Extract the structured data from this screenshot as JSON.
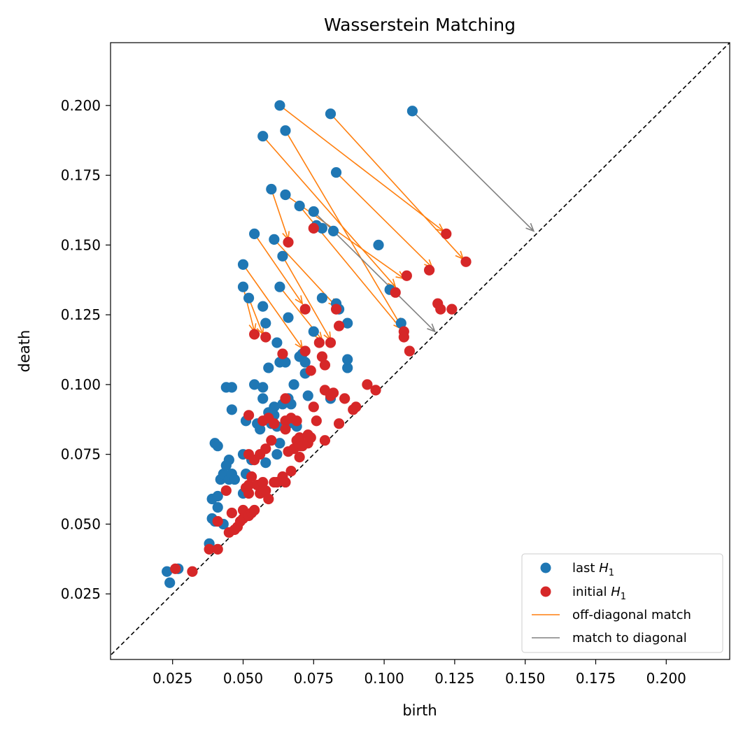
{
  "chart_data": {
    "type": "scatter",
    "title": "Wasserstein Matching",
    "xlabel": "birth",
    "ylabel": "death",
    "xlim": [
      0.003,
      0.2225
    ],
    "ylim": [
      0.0015,
      0.2225
    ],
    "xticks": [
      "0.025",
      "0.050",
      "0.075",
      "0.100",
      "0.125",
      "0.150",
      "0.175",
      "0.200"
    ],
    "yticks": [
      "0.025",
      "0.050",
      "0.075",
      "0.100",
      "0.125",
      "0.150",
      "0.175",
      "0.200"
    ],
    "grid": false,
    "diagonal": "y = x (dashed)",
    "legend_position": "bottom-right",
    "legend": {
      "last": {
        "label": "last ",
        "math": "H",
        "sub": "1"
      },
      "initial": {
        "label": "initial ",
        "math": "H",
        "sub": "1"
      },
      "offdiag": {
        "label": "off-diagonal match"
      },
      "diag": {
        "label": "match to diagonal"
      }
    },
    "colors": {
      "last": "#1f77b4",
      "initial": "#d62728",
      "offdiag": "#ff7f0e",
      "diag": "#808080"
    },
    "series": [
      {
        "key": "last",
        "points": [
          [
            0.023,
            0.033
          ],
          [
            0.024,
            0.029
          ],
          [
            0.027,
            0.034
          ],
          [
            0.038,
            0.043
          ],
          [
            0.039,
            0.052
          ],
          [
            0.039,
            0.059
          ],
          [
            0.04,
            0.079
          ],
          [
            0.04,
            0.051
          ],
          [
            0.041,
            0.056
          ],
          [
            0.041,
            0.078
          ],
          [
            0.041,
            0.06
          ],
          [
            0.042,
            0.066
          ],
          [
            0.043,
            0.05
          ],
          [
            0.043,
            0.068
          ],
          [
            0.044,
            0.071
          ],
          [
            0.044,
            0.099
          ],
          [
            0.045,
            0.073
          ],
          [
            0.045,
            0.066
          ],
          [
            0.046,
            0.099
          ],
          [
            0.046,
            0.068
          ],
          [
            0.046,
            0.091
          ],
          [
            0.047,
            0.066
          ],
          [
            0.05,
            0.135
          ],
          [
            0.05,
            0.143
          ],
          [
            0.05,
            0.075
          ],
          [
            0.05,
            0.061
          ],
          [
            0.051,
            0.087
          ],
          [
            0.051,
            0.068
          ],
          [
            0.052,
            0.131
          ],
          [
            0.053,
            0.073
          ],
          [
            0.054,
            0.154
          ],
          [
            0.054,
            0.1
          ],
          [
            0.055,
            0.086
          ],
          [
            0.056,
            0.084
          ],
          [
            0.057,
            0.189
          ],
          [
            0.057,
            0.128
          ],
          [
            0.057,
            0.099
          ],
          [
            0.057,
            0.095
          ],
          [
            0.058,
            0.122
          ],
          [
            0.058,
            0.072
          ],
          [
            0.059,
            0.106
          ],
          [
            0.059,
            0.09
          ],
          [
            0.06,
            0.17
          ],
          [
            0.06,
            0.086
          ],
          [
            0.061,
            0.152
          ],
          [
            0.061,
            0.092
          ],
          [
            0.061,
            0.089
          ],
          [
            0.062,
            0.115
          ],
          [
            0.062,
            0.075
          ],
          [
            0.062,
            0.085
          ],
          [
            0.063,
            0.2
          ],
          [
            0.063,
            0.135
          ],
          [
            0.063,
            0.108
          ],
          [
            0.063,
            0.079
          ],
          [
            0.064,
            0.146
          ],
          [
            0.064,
            0.093
          ],
          [
            0.065,
            0.191
          ],
          [
            0.065,
            0.168
          ],
          [
            0.065,
            0.108
          ],
          [
            0.065,
            0.094
          ],
          [
            0.066,
            0.124
          ],
          [
            0.066,
            0.095
          ],
          [
            0.066,
            0.086
          ],
          [
            0.067,
            0.093
          ],
          [
            0.068,
            0.1
          ],
          [
            0.069,
            0.085
          ],
          [
            0.07,
            0.164
          ],
          [
            0.07,
            0.11
          ],
          [
            0.071,
            0.111
          ],
          [
            0.072,
            0.104
          ],
          [
            0.072,
            0.108
          ],
          [
            0.073,
            0.096
          ],
          [
            0.075,
            0.162
          ],
          [
            0.075,
            0.119
          ],
          [
            0.076,
            0.157
          ],
          [
            0.078,
            0.156
          ],
          [
            0.078,
            0.131
          ],
          [
            0.081,
            0.197
          ],
          [
            0.081,
            0.095
          ],
          [
            0.082,
            0.155
          ],
          [
            0.083,
            0.176
          ],
          [
            0.083,
            0.129
          ],
          [
            0.084,
            0.127
          ],
          [
            0.087,
            0.106
          ],
          [
            0.087,
            0.109
          ],
          [
            0.087,
            0.122
          ],
          [
            0.098,
            0.15
          ],
          [
            0.102,
            0.134
          ],
          [
            0.106,
            0.122
          ],
          [
            0.11,
            0.198
          ]
        ]
      },
      {
        "key": "initial",
        "points": [
          [
            0.026,
            0.034
          ],
          [
            0.032,
            0.033
          ],
          [
            0.038,
            0.041
          ],
          [
            0.041,
            0.041
          ],
          [
            0.041,
            0.051
          ],
          [
            0.044,
            0.062
          ],
          [
            0.045,
            0.047
          ],
          [
            0.046,
            0.054
          ],
          [
            0.047,
            0.048
          ],
          [
            0.048,
            0.049
          ],
          [
            0.049,
            0.051
          ],
          [
            0.05,
            0.055
          ],
          [
            0.05,
            0.052
          ],
          [
            0.051,
            0.063
          ],
          [
            0.052,
            0.089
          ],
          [
            0.052,
            0.064
          ],
          [
            0.052,
            0.075
          ],
          [
            0.052,
            0.061
          ],
          [
            0.052,
            0.053
          ],
          [
            0.053,
            0.067
          ],
          [
            0.053,
            0.054
          ],
          [
            0.054,
            0.118
          ],
          [
            0.054,
            0.055
          ],
          [
            0.054,
            0.073
          ],
          [
            0.055,
            0.064
          ],
          [
            0.056,
            0.075
          ],
          [
            0.056,
            0.061
          ],
          [
            0.057,
            0.087
          ],
          [
            0.057,
            0.065
          ],
          [
            0.058,
            0.117
          ],
          [
            0.058,
            0.077
          ],
          [
            0.058,
            0.062
          ],
          [
            0.059,
            0.059
          ],
          [
            0.059,
            0.088
          ],
          [
            0.06,
            0.08
          ],
          [
            0.061,
            0.086
          ],
          [
            0.061,
            0.065
          ],
          [
            0.062,
            0.065
          ],
          [
            0.064,
            0.111
          ],
          [
            0.064,
            0.067
          ],
          [
            0.065,
            0.065
          ],
          [
            0.065,
            0.087
          ],
          [
            0.065,
            0.095
          ],
          [
            0.065,
            0.084
          ],
          [
            0.066,
            0.076
          ],
          [
            0.066,
            0.151
          ],
          [
            0.067,
            0.069
          ],
          [
            0.067,
            0.088
          ],
          [
            0.068,
            0.077
          ],
          [
            0.069,
            0.087
          ],
          [
            0.069,
            0.08
          ],
          [
            0.07,
            0.081
          ],
          [
            0.07,
            0.078
          ],
          [
            0.07,
            0.074
          ],
          [
            0.071,
            0.078
          ],
          [
            0.072,
            0.127
          ],
          [
            0.072,
            0.112
          ],
          [
            0.073,
            0.079
          ],
          [
            0.073,
            0.082
          ],
          [
            0.074,
            0.081
          ],
          [
            0.074,
            0.105
          ],
          [
            0.075,
            0.092
          ],
          [
            0.075,
            0.156
          ],
          [
            0.076,
            0.087
          ],
          [
            0.077,
            0.115
          ],
          [
            0.078,
            0.11
          ],
          [
            0.079,
            0.098
          ],
          [
            0.079,
            0.08
          ],
          [
            0.079,
            0.107
          ],
          [
            0.081,
            0.115
          ],
          [
            0.081,
            0.096
          ],
          [
            0.082,
            0.097
          ],
          [
            0.083,
            0.127
          ],
          [
            0.084,
            0.086
          ],
          [
            0.084,
            0.121
          ],
          [
            0.086,
            0.095
          ],
          [
            0.089,
            0.091
          ],
          [
            0.09,
            0.092
          ],
          [
            0.094,
            0.1
          ],
          [
            0.097,
            0.098
          ],
          [
            0.104,
            0.133
          ],
          [
            0.107,
            0.119
          ],
          [
            0.107,
            0.117
          ],
          [
            0.108,
            0.139
          ],
          [
            0.109,
            0.112
          ],
          [
            0.116,
            0.141
          ],
          [
            0.119,
            0.129
          ],
          [
            0.12,
            0.127
          ],
          [
            0.122,
            0.154
          ],
          [
            0.124,
            0.127
          ],
          [
            0.129,
            0.144
          ]
        ]
      }
    ],
    "off_diagonal_matches": [
      {
        "from": [
          0.063,
          0.2
        ],
        "to": [
          0.121,
          0.155
        ]
      },
      {
        "from": [
          0.065,
          0.191
        ],
        "to": [
          0.106,
          0.121
        ]
      },
      {
        "from": [
          0.081,
          0.197
        ],
        "to": [
          0.128,
          0.145
        ]
      },
      {
        "from": [
          0.083,
          0.176
        ],
        "to": [
          0.117,
          0.142
        ]
      },
      {
        "from": [
          0.057,
          0.189
        ],
        "to": [
          0.104,
          0.135
        ]
      },
      {
        "from": [
          0.06,
          0.17
        ],
        "to": [
          0.066,
          0.152
        ]
      },
      {
        "from": [
          0.065,
          0.168
        ],
        "to": [
          0.107,
          0.138
        ]
      },
      {
        "from": [
          0.07,
          0.164
        ],
        "to": [
          0.106,
          0.12
        ]
      },
      {
        "from": [
          0.054,
          0.154
        ],
        "to": [
          0.071,
          0.129
        ]
      },
      {
        "from": [
          0.061,
          0.152
        ],
        "to": [
          0.083,
          0.128
        ]
      },
      {
        "from": [
          0.063,
          0.135
        ],
        "to": [
          0.078,
          0.116
        ]
      },
      {
        "from": [
          0.05,
          0.143
        ],
        "to": [
          0.071,
          0.113
        ]
      },
      {
        "from": [
          0.052,
          0.131
        ],
        "to": [
          0.057,
          0.118
        ]
      },
      {
        "from": [
          0.05,
          0.135
        ],
        "to": [
          0.054,
          0.119
        ]
      },
      {
        "from": [
          0.064,
          0.146
        ],
        "to": [
          0.081,
          0.116
        ]
      }
    ],
    "diagonal_matches": [
      {
        "from": [
          0.11,
          0.198
        ],
        "to": [
          0.153,
          0.155
        ]
      },
      {
        "from": [
          0.075,
          0.162
        ],
        "to": [
          0.118,
          0.119
        ]
      }
    ]
  }
}
